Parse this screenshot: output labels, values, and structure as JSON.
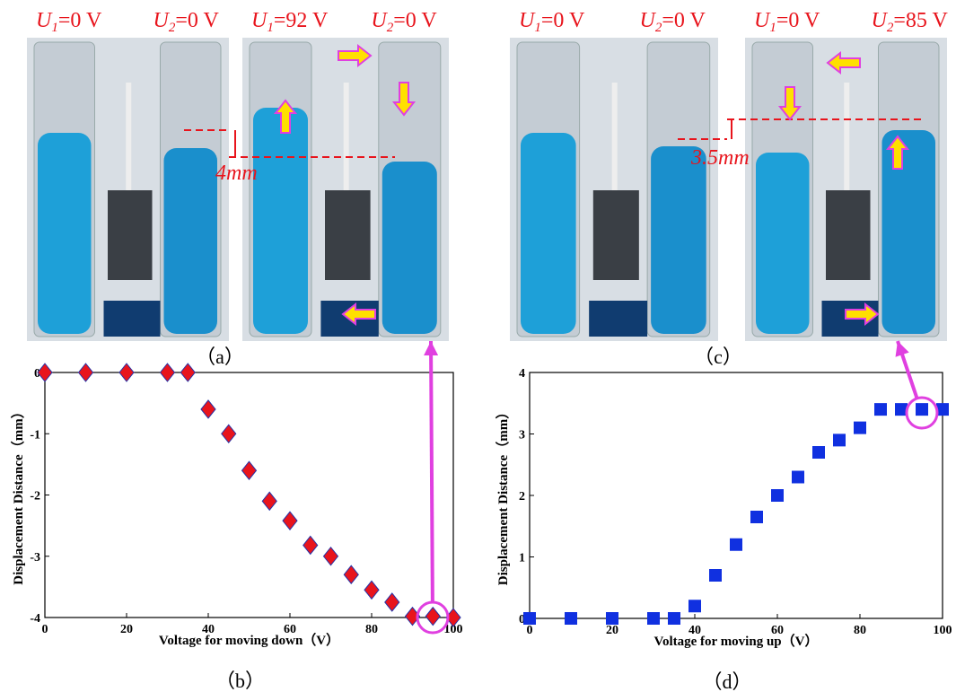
{
  "photo_labels": [
    [
      {
        "var": "U",
        "sub": "1",
        "text": "=0 V"
      },
      {
        "var": "U",
        "sub": "2",
        "text": "=0 V"
      }
    ],
    [
      {
        "var": "U",
        "sub": "1",
        "text": "=92 V"
      },
      {
        "var": "U",
        "sub": "2",
        "text": "=0 V"
      }
    ],
    [
      {
        "var": "U",
        "sub": "1",
        "text": "=0 V"
      },
      {
        "var": "U",
        "sub": "2",
        "text": "=0 V"
      }
    ],
    [
      {
        "var": "U",
        "sub": "1",
        "text": "=0 V"
      },
      {
        "var": "U",
        "sub": "2",
        "text": "=85 V"
      }
    ]
  ],
  "annotations": [
    "4mm",
    "3.5mm"
  ],
  "captions": [
    "（a）",
    "（c）"
  ],
  "chart_data": [
    {
      "type": "scatter",
      "caption": "（b）",
      "x_label": "Voltage for moving down（V）",
      "y_label": "Displacement Distance（mm）",
      "x": [
        0,
        10,
        20,
        30,
        35,
        40,
        45,
        50,
        55,
        60,
        65,
        70,
        75,
        80,
        85,
        90,
        95,
        100
      ],
      "values": [
        0,
        0,
        0,
        0,
        0,
        -0.6,
        -1.0,
        -1.6,
        -2.1,
        -2.42,
        -2.82,
        -3.0,
        -3.3,
        -3.55,
        -3.75,
        -3.98,
        -3.98,
        -4.0
      ],
      "marker": "diamond",
      "color": "#e8141c",
      "edge_color": "#2233aa",
      "xlim": [
        0,
        100
      ],
      "ylim": [
        -4,
        0
      ],
      "xticks": [
        0,
        20,
        40,
        60,
        80,
        100
      ],
      "yticks": [
        0,
        -1,
        -2,
        -3,
        -4
      ]
    },
    {
      "type": "scatter",
      "caption": "（d）",
      "x_label": "Voltage for moving up（V）",
      "y_label": "Displacement Distance（mm）",
      "x": [
        0,
        10,
        20,
        30,
        35,
        40,
        45,
        50,
        55,
        60,
        65,
        70,
        75,
        80,
        85,
        90,
        95,
        100
      ],
      "values": [
        0,
        0,
        0,
        0,
        0,
        0.2,
        0.7,
        1.2,
        1.65,
        2.0,
        2.3,
        2.7,
        2.9,
        3.1,
        3.4,
        3.4,
        3.4,
        3.4
      ],
      "marker": "square",
      "color": "#1030e0",
      "edge_color": "#1030e0",
      "xlim": [
        0,
        100
      ],
      "ylim": [
        0,
        4
      ],
      "xticks": [
        0,
        20,
        40,
        60,
        80,
        100
      ],
      "yticks": [
        0,
        1,
        2,
        3,
        4
      ]
    }
  ]
}
